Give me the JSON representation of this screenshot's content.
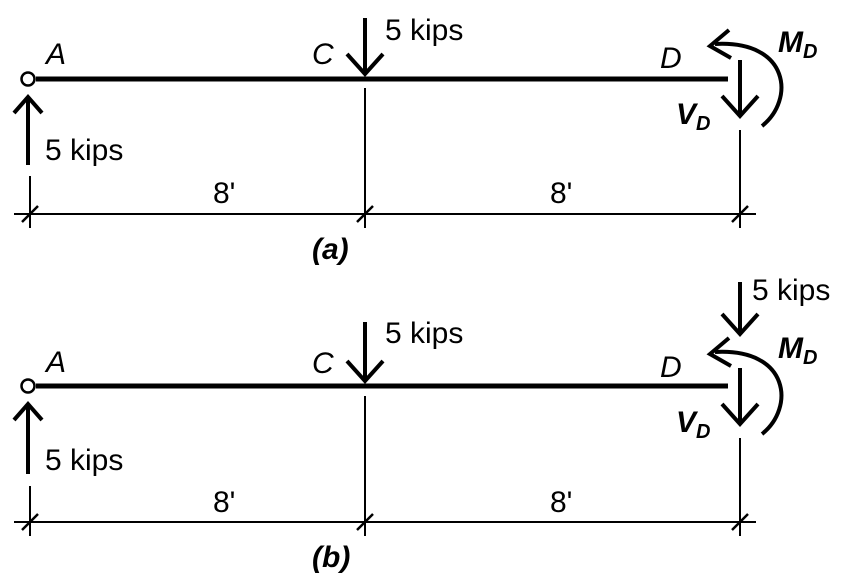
{
  "diagrams": [
    {
      "caption": "(a)",
      "points": {
        "a": "A",
        "c": "C",
        "d": "D"
      },
      "reaction_a": "5 kips",
      "load_c": "5 kips",
      "moment": {
        "symbol": "M",
        "subscript": "D"
      },
      "shear": {
        "symbol": "V",
        "subscript": "D"
      },
      "span_1": "8'",
      "span_2": "8'"
    },
    {
      "caption": "(b)",
      "points": {
        "a": "A",
        "c": "C",
        "d": "D"
      },
      "reaction_a": "5 kips",
      "load_c": "5 kips",
      "load_d": "5 kips",
      "moment": {
        "symbol": "M",
        "subscript": "D"
      },
      "shear": {
        "symbol": "V",
        "subscript": "D"
      },
      "span_1": "8'",
      "span_2": "8'"
    }
  ]
}
